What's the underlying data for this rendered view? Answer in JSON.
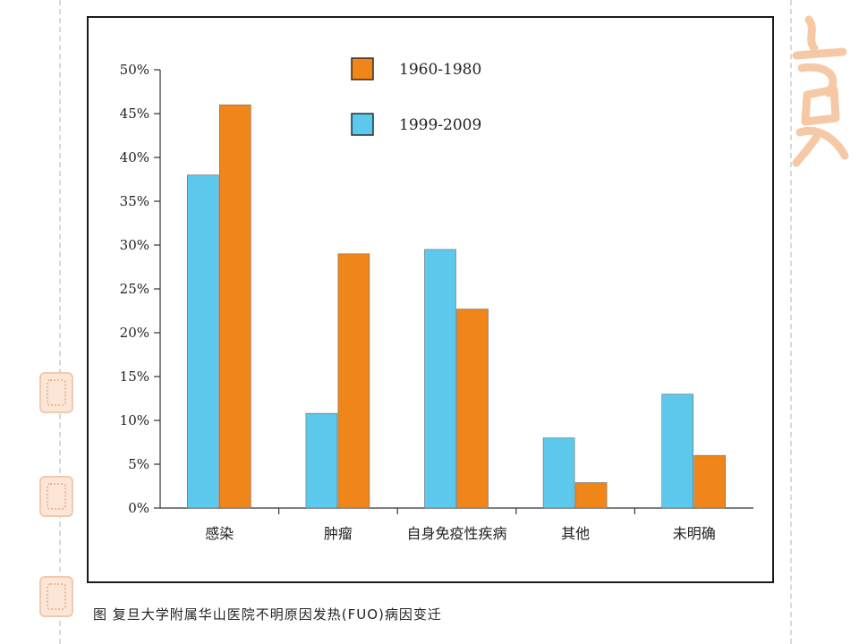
{
  "chart_data": {
    "type": "bar",
    "categories": [
      "感染",
      "肿瘤",
      "自身免疫性疾病",
      "其他",
      "未明确"
    ],
    "series": [
      {
        "name": "1999-2009",
        "values": [
          38,
          10.8,
          29.5,
          8,
          13
        ],
        "color": "#5bc8ec"
      },
      {
        "name": "1960-1980",
        "values": [
          46,
          29,
          22.7,
          2.9,
          6
        ],
        "color": "#f08519"
      }
    ],
    "legend_order": [
      "1960-1980",
      "1999-2009"
    ],
    "legend_position": "top-center",
    "ylim": [
      0,
      50
    ],
    "yticks": [
      "0%",
      "5%",
      "10%",
      "15%",
      "20%",
      "25%",
      "30%",
      "35%",
      "40%",
      "45%",
      "50%"
    ],
    "ytick_values": [
      0,
      5,
      10,
      15,
      20,
      25,
      30,
      35,
      40,
      45,
      50
    ],
    "grid": false,
    "title": "",
    "xlabel": "",
    "ylabel": ""
  },
  "caption": "图 复旦大学附属华山医院不明原因发热(FUO)病因变迁"
}
